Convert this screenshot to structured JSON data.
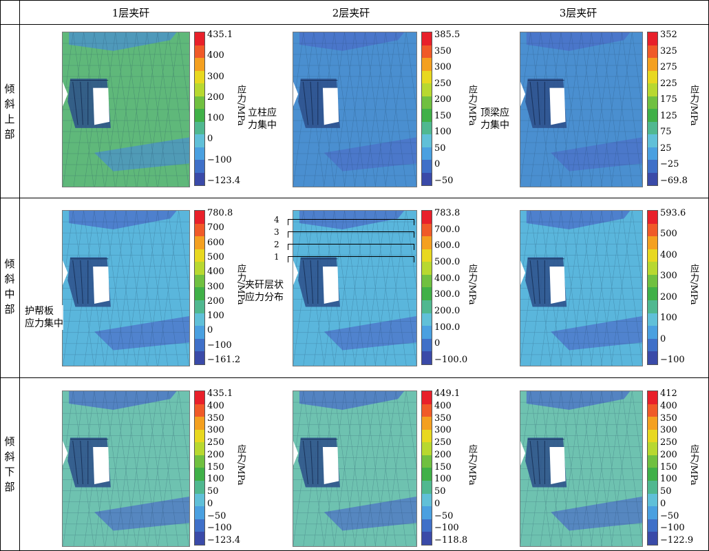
{
  "headers": [
    "1层夹矸",
    "2层夹矸",
    "3层夹矸"
  ],
  "rows": [
    {
      "label": [
        "倾",
        "斜",
        "上",
        "部"
      ]
    },
    {
      "label": [
        "倾",
        "斜",
        "中",
        "部"
      ]
    },
    {
      "label": [
        "倾",
        "斜",
        "下",
        "部"
      ]
    }
  ],
  "unit_label": "应力/MPa",
  "panels": [
    {
      "ticks": [
        "435.1",
        "400",
        "300",
        "200",
        "100",
        "0",
        "−100",
        "−123.4"
      ],
      "field": "green",
      "annotation": ""
    },
    {
      "ticks": [
        "385.5",
        "350",
        "300",
        "250",
        "200",
        "150",
        "100",
        "50",
        "0",
        "−50"
      ],
      "field": "blue",
      "annotation": "立柱应\n力集中"
    },
    {
      "ticks": [
        "352",
        "325",
        "275",
        "225",
        "175",
        "125",
        "75",
        "25",
        "−25",
        "−69.8"
      ],
      "field": "blue",
      "annotation": "顶梁应\n力集中"
    },
    {
      "ticks": [
        "780.8",
        "700",
        "600",
        "500",
        "400",
        "300",
        "200",
        "100",
        "0",
        "−100",
        "−161.2"
      ],
      "field": "cyan",
      "annotation": "护帮板\n应力集中"
    },
    {
      "ticks": [
        "783.8",
        "700.0",
        "600.0",
        "500.0",
        "400.0",
        "300.0",
        "200.0",
        "100.0",
        "0",
        "−100.0"
      ],
      "field": "cyan",
      "annotation": "夹矸层状\n应力分布"
    },
    {
      "ticks": [
        "593.6",
        "500",
        "400",
        "300",
        "200",
        "100",
        "0",
        "−100"
      ],
      "field": "cyan",
      "annotation": ""
    },
    {
      "ticks": [
        "435.1",
        "400",
        "350",
        "300",
        "250",
        "200",
        "150",
        "100",
        "50",
        "0",
        "−50",
        "−100",
        "−123.4"
      ],
      "field": "teal",
      "annotation": ""
    },
    {
      "ticks": [
        "449.1",
        "400",
        "350",
        "300",
        "250",
        "200",
        "150",
        "100",
        "50",
        "0",
        "−50",
        "−100",
        "−118.8"
      ],
      "field": "teal",
      "annotation": ""
    },
    {
      "ticks": [
        "412",
        "400",
        "350",
        "300",
        "250",
        "200",
        "150",
        "100",
        "50",
        "0",
        "−50",
        "−100",
        "−122.9"
      ],
      "field": "teal",
      "annotation": ""
    }
  ],
  "layer_numbers": [
    "4",
    "3",
    "2",
    "1"
  ],
  "colors": {
    "green": "#5fb87a",
    "blue": "#4a8fd0",
    "cyan": "#5ab6dc",
    "teal": "#6ec2b0",
    "darkblue": "#4b6ec8",
    "deep": "#3f4fa8"
  },
  "legend_colors": [
    "#e8202a",
    "#f05a28",
    "#f4a020",
    "#e8d820",
    "#b8d830",
    "#70c040",
    "#40b048",
    "#50b890",
    "#60c0d8",
    "#4aa0e0",
    "#3f70c8",
    "#3a4aa8"
  ]
}
